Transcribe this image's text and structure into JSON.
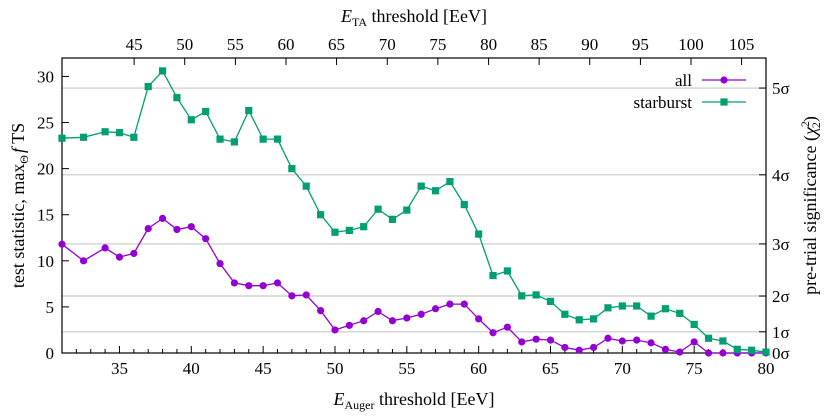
{
  "chart_data": {
    "type": "line",
    "top_axis": {
      "label_main": "E",
      "label_sub": "TA",
      "label_rest": " threshold [EeV]",
      "ticks": [
        {
          "value": 45,
          "label": "45",
          "at_bottom": 36.02
        },
        {
          "value": 50,
          "label": "50",
          "at_bottom": 39.54
        },
        {
          "value": 55,
          "label": "55",
          "at_bottom": 43.07
        },
        {
          "value": 60,
          "label": "60",
          "at_bottom": 46.59
        },
        {
          "value": 65,
          "label": "65",
          "at_bottom": 50.11
        },
        {
          "value": 70,
          "label": "70",
          "at_bottom": 53.64
        },
        {
          "value": 75,
          "label": "75",
          "at_bottom": 57.16
        },
        {
          "value": 80,
          "label": "80",
          "at_bottom": 60.69
        },
        {
          "value": 85,
          "label": "85",
          "at_bottom": 64.21
        },
        {
          "value": 90,
          "label": "90",
          "at_bottom": 67.73
        },
        {
          "value": 95,
          "label": "95",
          "at_bottom": 71.26
        },
        {
          "value": 100,
          "label": "100",
          "at_bottom": 74.78
        },
        {
          "value": 105,
          "label": "105",
          "at_bottom": 78.3
        }
      ]
    },
    "bottom_axis": {
      "label_main": "E",
      "label_sub": "Auger",
      "label_rest": " threshold [EeV]",
      "xlim": [
        31,
        80
      ],
      "ticks": [
        35,
        40,
        45,
        50,
        55,
        60,
        65,
        70,
        75,
        80
      ]
    },
    "left_axis": {
      "label": "test statistic, max",
      "label_sub": "Θ",
      "label_f": "f",
      "label_end": " TS",
      "ylim": [
        0,
        32
      ],
      "ticks": [
        0,
        5,
        10,
        15,
        20,
        25,
        30
      ]
    },
    "right_axis": {
      "label_pre": "pre-trial significance (",
      "label_chi": "χ",
      "label_sup": "2",
      "label_sub": "2",
      "label_post": ")",
      "sigma_lines": [
        {
          "label": "0σ",
          "ts": 0
        },
        {
          "label": "1σ",
          "ts": 2.3
        },
        {
          "label": "2σ",
          "ts": 6.18
        },
        {
          "label": "3σ",
          "ts": 11.83
        },
        {
          "label": "4σ",
          "ts": 19.33
        },
        {
          "label": "5σ",
          "ts": 28.74
        }
      ]
    },
    "legend": {
      "position": "top-right",
      "entries": [
        {
          "name": "all",
          "color": "#9400d3",
          "marker": "circle"
        },
        {
          "name": "starburst",
          "color": "#009e73",
          "marker": "square"
        }
      ]
    },
    "series": [
      {
        "name": "all",
        "color": "#9400d3",
        "marker": "circle",
        "x": [
          31,
          32.5,
          34,
          35,
          36,
          37,
          38,
          39,
          40,
          41,
          42,
          43,
          44,
          45,
          46,
          47,
          48,
          49,
          50,
          51,
          52,
          53,
          54,
          55,
          56,
          57,
          58,
          59,
          60,
          61,
          62,
          63,
          64,
          65,
          66,
          67,
          68,
          69,
          70,
          71,
          72,
          73,
          74,
          75,
          76,
          77,
          78,
          79,
          80
        ],
        "values": [
          11.8,
          10,
          11.4,
          10.4,
          10.8,
          13.5,
          14.6,
          13.4,
          13.7,
          12.4,
          9.7,
          7.6,
          7.3,
          7.3,
          7.6,
          6.2,
          6.3,
          4.6,
          2.5,
          3,
          3.5,
          4.5,
          3.5,
          3.8,
          4.2,
          4.8,
          5.3,
          5.3,
          3.7,
          2.2,
          2.8,
          1.2,
          1.5,
          1.4,
          0.6,
          0.3,
          0.6,
          1.6,
          1.3,
          1.4,
          1.1,
          0.4,
          0.1,
          1.2,
          0,
          0,
          0,
          0,
          0
        ]
      },
      {
        "name": "starburst",
        "color": "#009e73",
        "marker": "square",
        "x": [
          31,
          32.5,
          34,
          35,
          36,
          37,
          38,
          39,
          40,
          41,
          42,
          43,
          44,
          45,
          46,
          47,
          48,
          49,
          50,
          51,
          52,
          53,
          54,
          55,
          56,
          57,
          58,
          59,
          60,
          61,
          62,
          63,
          64,
          65,
          66,
          67,
          68,
          69,
          70,
          71,
          72,
          73,
          74,
          75,
          76,
          77,
          78,
          79,
          80
        ],
        "values": [
          23.3,
          23.4,
          24,
          23.9,
          23.4,
          28.9,
          30.6,
          27.7,
          25.3,
          26.2,
          23.2,
          22.9,
          26.3,
          23.2,
          23.2,
          20,
          18.1,
          15,
          13.1,
          13.3,
          13.7,
          15.6,
          14.5,
          15.5,
          18.1,
          17.6,
          18.6,
          16.1,
          12.9,
          8.4,
          8.9,
          6.2,
          6.3,
          5.6,
          4.2,
          3.6,
          3.7,
          4.9,
          5.1,
          5.1,
          4,
          4.8,
          4.3,
          3.1,
          1.6,
          1.3,
          0.4,
          0.3,
          0.1
        ]
      }
    ]
  }
}
